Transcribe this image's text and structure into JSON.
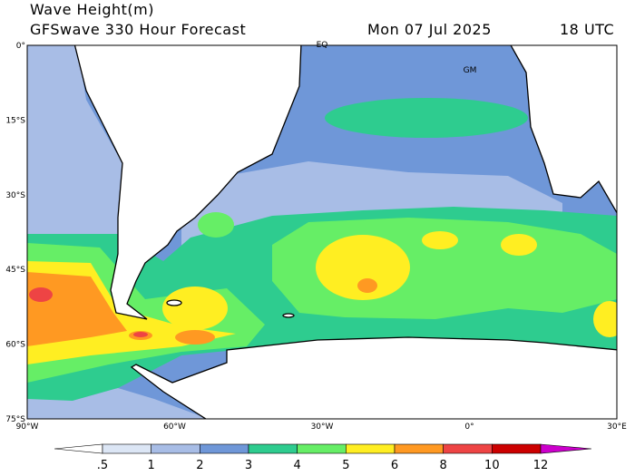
{
  "header": {
    "title": "Wave Height(m)",
    "subtitle": "GFSwave 330 Hour Forecast",
    "date": "Mon 07 Jul 2025",
    "time": "18 UTC"
  },
  "map": {
    "labels": [
      "EQ",
      "GM"
    ],
    "lat_labels": [
      "0°",
      "15°S",
      "30°S",
      "45°S",
      "60°S",
      "75°S"
    ],
    "lon_labels": [
      "90°W",
      "60°W",
      "30°W",
      "0°",
      "30°E"
    ]
  },
  "colorbar": {
    "labels": [
      ".5",
      "1",
      "2",
      "3",
      "4",
      "5",
      "6",
      "8",
      "10",
      "12"
    ],
    "colors": [
      "#ffffff",
      "#dce6f5",
      "#a8bde6",
      "#6f97d8",
      "#2ecc8f",
      "#66ee66",
      "#ffee22",
      "#ff9922",
      "#ee4444",
      "#cc0000",
      "#cc00cc"
    ]
  }
}
